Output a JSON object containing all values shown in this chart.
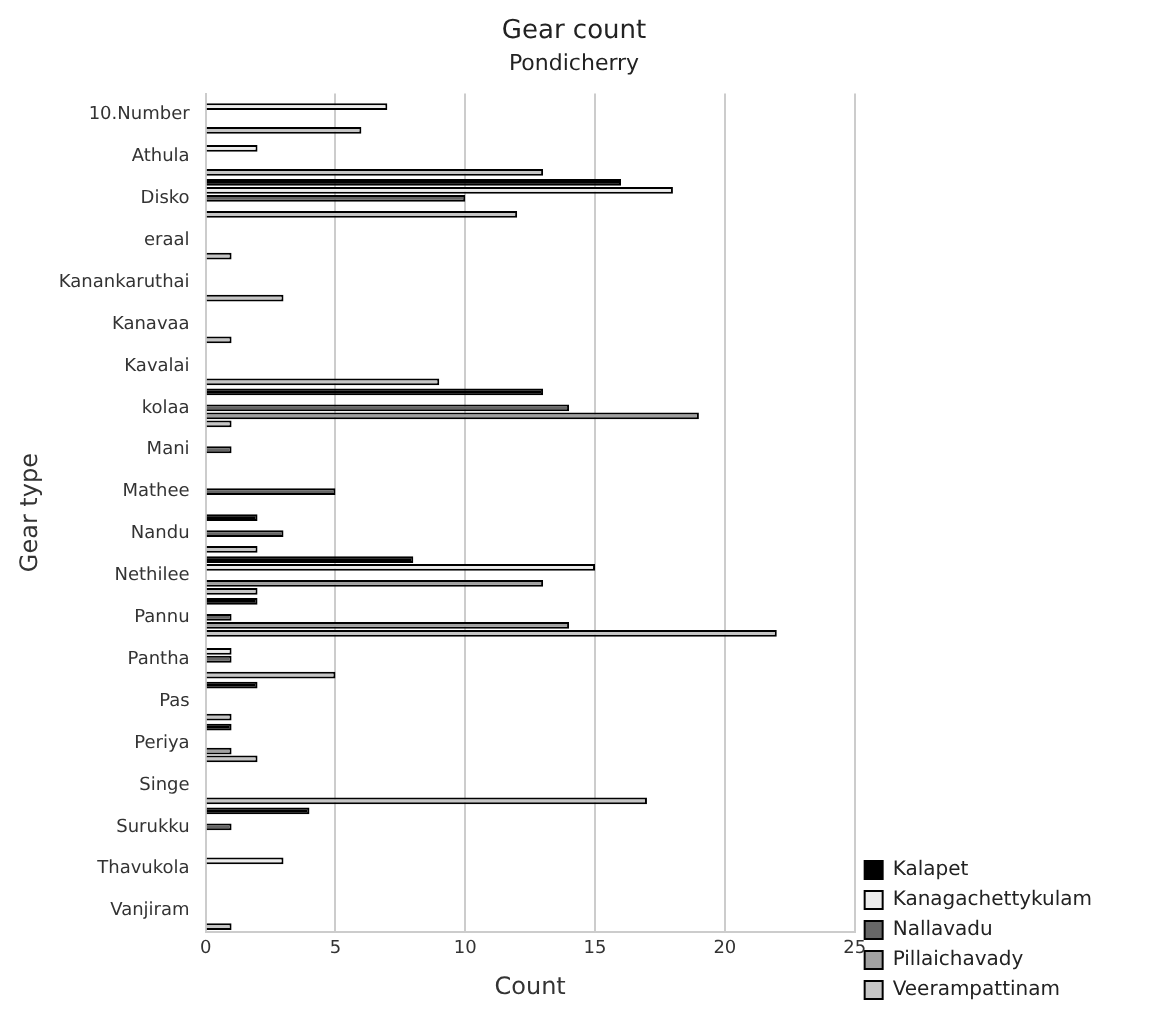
{
  "chart_data": {
    "type": "bar",
    "orientation": "horizontal",
    "title": "Gear count",
    "subtitle": "Pondicherry",
    "xlabel": "Count",
    "ylabel": "Gear type",
    "categories": [
      "10.Number",
      "Athula",
      "Disko",
      "eraal",
      "Kanankaruthai",
      "Kanavaa",
      "Kavalai",
      "kolaa",
      "Mani",
      "Mathee",
      "Nandu",
      "Nethilee",
      "Pannu",
      "Pantha",
      "Pas",
      "Periya",
      "Singe",
      "Surukku",
      "Thavukola",
      "Vanjiram"
    ],
    "series": [
      {
        "name": "Kalapet",
        "color": "#000000",
        "values": [
          null,
          null,
          16,
          null,
          null,
          null,
          null,
          13,
          null,
          null,
          2,
          8,
          2,
          null,
          2,
          1,
          null,
          4,
          null,
          null
        ]
      },
      {
        "name": "Kanagachettykulam",
        "color": "#ececec",
        "values": [
          7,
          2,
          18,
          null,
          null,
          null,
          null,
          null,
          null,
          null,
          null,
          15,
          null,
          1,
          null,
          null,
          null,
          null,
          3,
          null
        ]
      },
      {
        "name": "Nallavadu",
        "color": "#666666",
        "values": [
          null,
          null,
          10,
          null,
          null,
          null,
          null,
          14,
          1,
          5,
          3,
          null,
          1,
          1,
          null,
          null,
          null,
          1,
          null,
          null
        ]
      },
      {
        "name": "Pillaichavady",
        "color": "#a0a0a0",
        "values": [
          null,
          null,
          null,
          null,
          null,
          null,
          null,
          19,
          null,
          null,
          null,
          13,
          14,
          null,
          null,
          1,
          null,
          null,
          null,
          null
        ]
      },
      {
        "name": "Veerampattinam",
        "color": "#c6c6c6",
        "values": [
          6,
          13,
          12,
          1,
          3,
          1,
          9,
          1,
          null,
          null,
          2,
          2,
          22,
          5,
          1,
          2,
          17,
          null,
          null,
          1
        ]
      }
    ],
    "xlim": [
      0,
      25
    ],
    "xticks": [
      0,
      5,
      10,
      15,
      20,
      25
    ],
    "grid": "x",
    "legend": "bottom right"
  }
}
